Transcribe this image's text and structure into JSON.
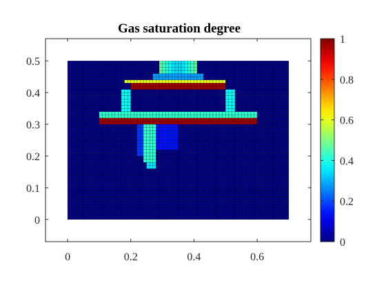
{
  "chart_data": {
    "type": "heatmap",
    "title": "Gas saturation degree",
    "xlabel": "",
    "ylabel": "",
    "xlim": [
      -0.07,
      0.77
    ],
    "ylim": [
      -0.07,
      0.57
    ],
    "xticks": [
      0,
      0.2,
      0.4,
      0.6
    ],
    "xtick_labels": [
      "0",
      "0.2",
      "0.4",
      "0.6"
    ],
    "yticks": [
      0,
      0.1,
      0.2,
      0.3,
      0.4,
      0.5
    ],
    "ytick_labels": [
      "0",
      "0.1",
      "0.2",
      "0.3",
      "0.4",
      "0.5"
    ],
    "grid": false,
    "colormap": "jet",
    "domain": {
      "x": [
        0,
        0.7
      ],
      "y": [
        0,
        0.5
      ]
    },
    "mesh_cells": {
      "x": 70,
      "y": 50
    },
    "colorbar": {
      "location": "right",
      "range": [
        0,
        1
      ],
      "ticks": [
        0,
        0.2,
        0.4,
        0.6,
        0.8,
        1
      ],
      "tick_labels": [
        "0",
        "0.2",
        "0.4",
        "0.6",
        "0.8",
        "1"
      ]
    },
    "regions": [
      {
        "name": "upper layer",
        "x": [
          0.2,
          0.5
        ],
        "y": [
          0.41,
          0.43
        ],
        "saturation": 0.97
      },
      {
        "name": "upper layer gradient",
        "x": [
          0.18,
          0.5
        ],
        "y": [
          0.43,
          0.44
        ],
        "saturation": 0.6
      },
      {
        "name": "top plume",
        "x": [
          0.29,
          0.41
        ],
        "y": [
          0.46,
          0.5
        ],
        "saturation": 0.4
      },
      {
        "name": "lower layer",
        "x": [
          0.1,
          0.6
        ],
        "y": [
          0.3,
          0.32
        ],
        "saturation": 0.97
      },
      {
        "name": "lower layer top",
        "x": [
          0.1,
          0.6
        ],
        "y": [
          0.32,
          0.345
        ],
        "saturation": 0.42
      },
      {
        "name": "central stem",
        "x": [
          0.24,
          0.28
        ],
        "y": [
          0.16,
          0.3
        ],
        "saturation": 0.42
      }
    ]
  }
}
